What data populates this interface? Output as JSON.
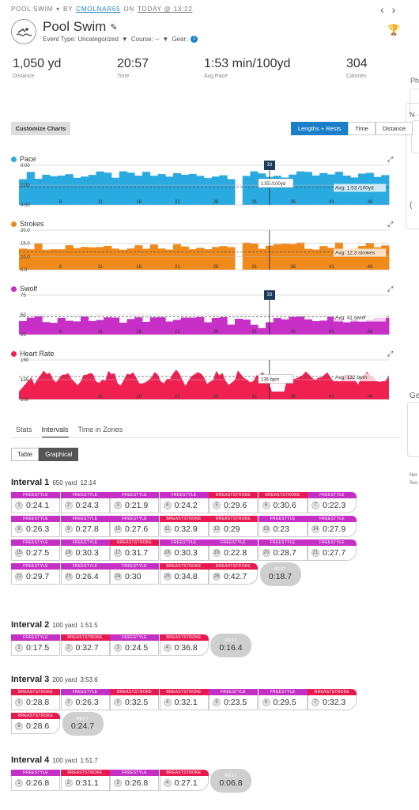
{
  "header": {
    "breadcrumb": {
      "activity": "POOL SWIM",
      "by": "BY",
      "user": "CMOLNAR65",
      "on": "ON",
      "date": "TODAY @ 13:22"
    },
    "title": "Pool Swim",
    "event_type_label": "Event Type: Uncategorized",
    "course_label": "Course: --",
    "gear_label": "Gear:",
    "gear_count": "1"
  },
  "stats": [
    {
      "value": "1,050 yd",
      "label": "Distance"
    },
    {
      "value": "20:57",
      "label": "Time"
    },
    {
      "value": "1:53 min/100yd",
      "label": "Avg Pace"
    },
    {
      "value": "304",
      "label": "Calories"
    }
  ],
  "right_column": {
    "ph": "Ph",
    "n": "N",
    "ge": "Ge",
    "nor": "Nor",
    "sco": "Sco"
  },
  "charts_toolbar": {
    "customize": "Customize Charts",
    "segments": [
      "Lengths + Rests",
      "Time",
      "Distance"
    ],
    "active": 0
  },
  "charts": [
    {
      "name": "Pace",
      "color": "#29aae1",
      "yticks": [
        "0:00",
        "2:00",
        "4:00"
      ],
      "avg": "Avg: 1:53 /100yd",
      "marker": "33",
      "tooltip": "1:55 /100yd",
      "xticks": [
        "6",
        "11",
        "16",
        "21",
        "26",
        "31",
        "36",
        "41",
        "46"
      ]
    },
    {
      "name": "Strokes",
      "color": "#f08a1a",
      "yticks": [
        "20.0",
        "15.0",
        "10.0",
        "5.0"
      ],
      "avg": "Avg: 12.3 strokes",
      "xticks": [
        "6",
        "11",
        "16",
        "21",
        "26",
        "31",
        "36",
        "41",
        "46"
      ]
    },
    {
      "name": "Swolf",
      "color": "#c72fc7",
      "yticks": [
        "75",
        "50",
        "25"
      ],
      "avg": "Avg: 41 swolf",
      "marker": "33",
      "xticks": [
        "6",
        "11",
        "16",
        "21",
        "26",
        "31",
        "36",
        "41",
        "46"
      ]
    },
    {
      "name": "Heart Rate",
      "color": "#f02050",
      "yticks": [
        "150",
        "125",
        "100"
      ],
      "avg": "Avg: 132 bpm",
      "tooltip": "136 bpm",
      "xticks": [
        "11",
        "16",
        "21",
        "26",
        "31",
        "36",
        "41",
        "46"
      ]
    }
  ],
  "tabs": [
    "Stats",
    "Intervals",
    "Time in Zones"
  ],
  "view_toggle": [
    "Table",
    "Graphical"
  ],
  "stroke_names": {
    "fs": "FREESTYLE",
    "br": "BREASTSTROKE",
    "rest": "REST"
  },
  "intervals": [
    {
      "title": "Interval 1",
      "distance": "650 yard",
      "time": "12:14",
      "lengths": [
        {
          "n": "1",
          "t": "0:24.1",
          "s": "fs"
        },
        {
          "n": "2",
          "t": "0:24.3",
          "s": "fs"
        },
        {
          "n": "3",
          "t": "0:21.9",
          "s": "fs"
        },
        {
          "n": "4",
          "t": "0:24.2",
          "s": "fs"
        },
        {
          "n": "5",
          "t": "0:29.6",
          "s": "br"
        },
        {
          "n": "6",
          "t": "0:30.6",
          "s": "br"
        },
        {
          "n": "7",
          "t": "0:22.3",
          "s": "fs"
        },
        {
          "n": "8",
          "t": "0:26.3",
          "s": "fs"
        },
        {
          "n": "9",
          "t": "0:27.8",
          "s": "fs"
        },
        {
          "n": "10",
          "t": "0:27.6",
          "s": "fs"
        },
        {
          "n": "11",
          "t": "0:32.9",
          "s": "br"
        },
        {
          "n": "12",
          "t": "0:29",
          "s": "br"
        },
        {
          "n": "13",
          "t": "0:23",
          "s": "fs"
        },
        {
          "n": "14",
          "t": "0:27.9",
          "s": "fs"
        },
        {
          "n": "15",
          "t": "0:27.5",
          "s": "fs"
        },
        {
          "n": "16",
          "t": "0:30.3",
          "s": "fs"
        },
        {
          "n": "17",
          "t": "0:31.7",
          "s": "br"
        },
        {
          "n": "18",
          "t": "0:30.3",
          "s": "fs"
        },
        {
          "n": "19",
          "t": "0:22.8",
          "s": "fs"
        },
        {
          "n": "20",
          "t": "0:28.7",
          "s": "fs"
        },
        {
          "n": "21",
          "t": "0:27.7",
          "s": "fs"
        },
        {
          "n": "22",
          "t": "0:29.7",
          "s": "fs"
        },
        {
          "n": "23",
          "t": "0:26.4",
          "s": "fs"
        },
        {
          "n": "24",
          "t": "0:30",
          "s": "fs"
        },
        {
          "n": "25",
          "t": "0:34.8",
          "s": "br"
        },
        {
          "n": "26",
          "t": "0:42.7",
          "s": "br"
        }
      ],
      "rest": "0:18.7"
    },
    {
      "title": "Interval 2",
      "distance": "100 yard",
      "time": "1:51.5",
      "lengths": [
        {
          "n": "1",
          "t": "0:17.5",
          "s": "fs"
        },
        {
          "n": "2",
          "t": "0:32.7",
          "s": "br"
        },
        {
          "n": "3",
          "t": "0:24.5",
          "s": "fs"
        },
        {
          "n": "4",
          "t": "0:36.8",
          "s": "br"
        }
      ],
      "rest": "0:16.4"
    },
    {
      "title": "Interval 3",
      "distance": "200 yard",
      "time": "3:53.6",
      "lengths": [
        {
          "n": "1",
          "t": "0:28.8",
          "s": "br"
        },
        {
          "n": "2",
          "t": "0:26.3",
          "s": "fs"
        },
        {
          "n": "3",
          "t": "0:32.5",
          "s": "br"
        },
        {
          "n": "4",
          "t": "0:32.1",
          "s": "br"
        },
        {
          "n": "5",
          "t": "0:23.5",
          "s": "fs"
        },
        {
          "n": "6",
          "t": "0:29.5",
          "s": "fs"
        },
        {
          "n": "7",
          "t": "0:32.3",
          "s": "br"
        },
        {
          "n": "8",
          "t": "0:28.6",
          "s": "br"
        }
      ],
      "rest": "0:24.7"
    },
    {
      "title": "Interval 4",
      "distance": "100 yard",
      "time": "1:51.7",
      "lengths": [
        {
          "n": "1",
          "t": "0:26.8",
          "s": "fs"
        },
        {
          "n": "2",
          "t": "0:31.1",
          "s": "br"
        },
        {
          "n": "3",
          "t": "0:26.8",
          "s": "fs"
        },
        {
          "n": "4",
          "t": "0:27.1",
          "s": "br"
        }
      ],
      "rest": "0:06.8"
    }
  ]
}
